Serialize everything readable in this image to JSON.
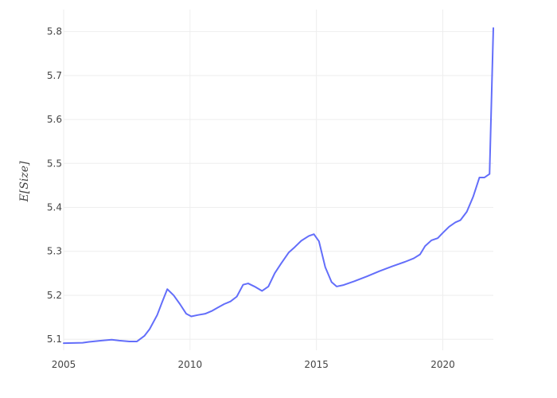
{
  "chart_data": {
    "type": "line",
    "title": "",
    "xlabel": "",
    "ylabel": "E[Size]",
    "xlim": [
      2005,
      2022
    ],
    "ylim": [
      5.075,
      5.85
    ],
    "x_ticks": [
      2005,
      2010,
      2015,
      2020
    ],
    "y_ticks": [
      5.1,
      5.2,
      5.3,
      5.4,
      5.5,
      5.6,
      5.7,
      5.8
    ],
    "grid": true,
    "legend": "none",
    "series": [
      {
        "color": "#636efa",
        "points": [
          [
            2005.0,
            5.091
          ],
          [
            2005.75,
            5.092
          ],
          [
            2006.0,
            5.094
          ],
          [
            2006.5,
            5.097
          ],
          [
            2006.9,
            5.099
          ],
          [
            2007.2,
            5.097
          ],
          [
            2007.6,
            5.095
          ],
          [
            2007.9,
            5.095
          ],
          [
            2008.2,
            5.108
          ],
          [
            2008.4,
            5.123
          ],
          [
            2008.7,
            5.155
          ],
          [
            2008.9,
            5.185
          ],
          [
            2009.1,
            5.214
          ],
          [
            2009.35,
            5.2
          ],
          [
            2009.6,
            5.18
          ],
          [
            2009.85,
            5.158
          ],
          [
            2010.05,
            5.152
          ],
          [
            2010.3,
            5.155
          ],
          [
            2010.6,
            5.158
          ],
          [
            2010.85,
            5.164
          ],
          [
            2011.1,
            5.172
          ],
          [
            2011.35,
            5.18
          ],
          [
            2011.6,
            5.186
          ],
          [
            2011.85,
            5.197
          ],
          [
            2012.1,
            5.224
          ],
          [
            2012.3,
            5.227
          ],
          [
            2012.55,
            5.22
          ],
          [
            2012.85,
            5.21
          ],
          [
            2013.1,
            5.22
          ],
          [
            2013.35,
            5.25
          ],
          [
            2013.6,
            5.272
          ],
          [
            2013.9,
            5.297
          ],
          [
            2014.15,
            5.31
          ],
          [
            2014.4,
            5.324
          ],
          [
            2014.7,
            5.335
          ],
          [
            2014.9,
            5.339
          ],
          [
            2015.1,
            5.323
          ],
          [
            2015.35,
            5.264
          ],
          [
            2015.6,
            5.23
          ],
          [
            2015.8,
            5.22
          ],
          [
            2016.05,
            5.223
          ],
          [
            2016.5,
            5.232
          ],
          [
            2017.0,
            5.243
          ],
          [
            2017.5,
            5.255
          ],
          [
            2018.0,
            5.266
          ],
          [
            2018.5,
            5.276
          ],
          [
            2018.85,
            5.284
          ],
          [
            2019.1,
            5.293
          ],
          [
            2019.3,
            5.312
          ],
          [
            2019.55,
            5.325
          ],
          [
            2019.8,
            5.33
          ],
          [
            2020.0,
            5.342
          ],
          [
            2020.25,
            5.356
          ],
          [
            2020.5,
            5.366
          ],
          [
            2020.7,
            5.371
          ],
          [
            2020.95,
            5.39
          ],
          [
            2021.2,
            5.424
          ],
          [
            2021.45,
            5.468
          ],
          [
            2021.65,
            5.468
          ],
          [
            2021.85,
            5.476
          ],
          [
            2022.0,
            5.808
          ]
        ]
      }
    ]
  }
}
